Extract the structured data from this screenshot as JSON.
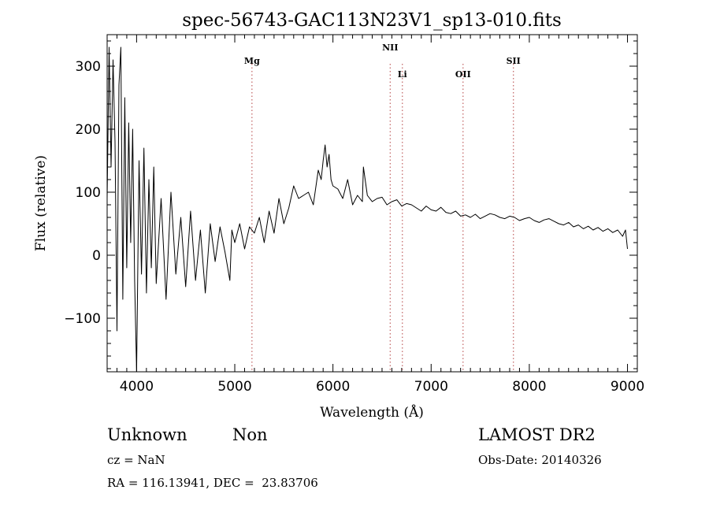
{
  "chart_data": {
    "type": "line",
    "title": "spec-56743-GAC113N23V1_sp13-010.fits",
    "xlabel": "Wavelength (Å)",
    "ylabel": "Flux (relative)",
    "xlim": [
      3700,
      9100
    ],
    "ylim": [
      -185,
      350
    ],
    "x_ticks": [
      4000,
      5000,
      6000,
      7000,
      8000,
      9000
    ],
    "y_ticks": [
      -100,
      0,
      100,
      200,
      300
    ],
    "grid": false,
    "spectrum": {
      "x": [
        3700,
        3720,
        3740,
        3760,
        3780,
        3800,
        3820,
        3840,
        3860,
        3880,
        3900,
        3920,
        3940,
        3960,
        3980,
        4000,
        4025,
        4050,
        4075,
        4100,
        4125,
        4150,
        4175,
        4200,
        4250,
        4300,
        4350,
        4400,
        4450,
        4500,
        4550,
        4600,
        4650,
        4700,
        4750,
        4800,
        4850,
        4900,
        4950,
        4970,
        5000,
        5050,
        5100,
        5150,
        5200,
        5250,
        5300,
        5350,
        5400,
        5450,
        5500,
        5550,
        5600,
        5650,
        5700,
        5750,
        5800,
        5850,
        5880,
        5900,
        5920,
        5940,
        5960,
        5980,
        6000,
        6050,
        6100,
        6150,
        6200,
        6250,
        6300,
        6310,
        6350,
        6400,
        6450,
        6500,
        6550,
        6600,
        6650,
        6700,
        6750,
        6800,
        6850,
        6900,
        6950,
        7000,
        7050,
        7100,
        7150,
        7200,
        7250,
        7300,
        7350,
        7400,
        7450,
        7500,
        7550,
        7600,
        7650,
        7700,
        7750,
        7800,
        7850,
        7900,
        7950,
        8000,
        8050,
        8100,
        8150,
        8200,
        8250,
        8300,
        8350,
        8400,
        8450,
        8500,
        8550,
        8600,
        8650,
        8700,
        8750,
        8800,
        8850,
        8900,
        8950,
        8980,
        9000
      ],
      "y": [
        90,
        330,
        140,
        310,
        180,
        -120,
        270,
        330,
        -70,
        250,
        -20,
        210,
        20,
        200,
        -40,
        -185,
        150,
        -30,
        170,
        -60,
        120,
        -20,
        140,
        -45,
        90,
        -70,
        100,
        -30,
        60,
        -50,
        70,
        -40,
        40,
        -60,
        50,
        -10,
        45,
        5,
        -40,
        40,
        20,
        50,
        10,
        45,
        35,
        60,
        20,
        70,
        35,
        90,
        50,
        75,
        110,
        90,
        95,
        100,
        80,
        135,
        120,
        150,
        175,
        140,
        160,
        120,
        110,
        105,
        90,
        120,
        80,
        95,
        85,
        140,
        95,
        85,
        90,
        92,
        80,
        85,
        88,
        78,
        82,
        80,
        75,
        70,
        78,
        72,
        70,
        76,
        68,
        66,
        70,
        62,
        64,
        60,
        65,
        58,
        62,
        66,
        64,
        60,
        58,
        62,
        60,
        55,
        58,
        60,
        55,
        52,
        56,
        58,
        54,
        50,
        48,
        52,
        45,
        48,
        42,
        46,
        40,
        44,
        38,
        42,
        36,
        40,
        30,
        40,
        10
      ]
    },
    "emission_lines": [
      {
        "label": "Mg",
        "wavelength": 5175
      },
      {
        "label": "NII",
        "wavelength": 6583
      },
      {
        "label": "Li",
        "wavelength": 6707
      },
      {
        "label": "OII",
        "wavelength": 7325
      },
      {
        "label": "SII",
        "wavelength": 7838
      }
    ]
  },
  "info": {
    "class_label": "Unknown",
    "subclass_label": "Non",
    "cz_line": "cz = NaN",
    "radec_line": "RA = 116.13941, DEC =  23.83706",
    "survey": "LAMOST DR2",
    "obs_date": "Obs-Date: 20140326"
  }
}
